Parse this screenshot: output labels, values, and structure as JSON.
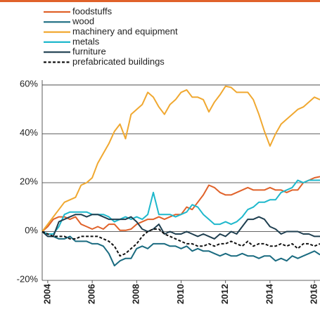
{
  "chart_data": {
    "type": "line",
    "x": [
      2003.75,
      2004,
      2004.25,
      2004.5,
      2004.75,
      2005,
      2005.25,
      2005.5,
      2005.75,
      2006,
      2006.25,
      2006.5,
      2006.75,
      2007,
      2007.25,
      2007.5,
      2007.75,
      2008,
      2008.25,
      2008.5,
      2008.75,
      2009,
      2009.25,
      2009.5,
      2009.75,
      2010,
      2010.25,
      2010.5,
      2010.75,
      2011,
      2011.25,
      2011.5,
      2011.75,
      2012,
      2012.25,
      2012.5,
      2012.75,
      2013,
      2013.25,
      2013.5,
      2013.75,
      2014,
      2014.25,
      2014.5,
      2014.75,
      2015,
      2015.25,
      2015.5,
      2015.75,
      2016,
      2016.25
    ],
    "series": [
      {
        "name": "foodstuffs",
        "color": "#e0622a",
        "values": [
          0,
          2,
          5,
          6,
          6,
          5,
          6,
          3,
          2,
          1,
          2,
          1,
          3,
          3,
          0.5,
          0.5,
          1,
          3,
          4,
          5,
          5,
          6,
          5,
          6,
          7,
          7,
          10,
          9,
          12,
          15,
          19,
          18,
          16,
          15,
          15,
          16,
          17,
          18,
          17,
          17,
          17,
          18,
          17,
          17,
          16,
          17,
          17,
          20,
          21,
          22,
          22.5
        ]
      },
      {
        "name": "wood",
        "color": "#1a6b80",
        "values": [
          0,
          -2,
          -2,
          -3,
          -3,
          -2,
          -4,
          -4,
          -4,
          -5,
          -5,
          -6,
          -9,
          -14,
          -12,
          -11,
          -11,
          -7,
          -6,
          -7,
          -5,
          -5,
          -5,
          -6,
          -6,
          -7,
          -6,
          -8,
          -7,
          -8,
          -8,
          -9,
          -10,
          -9,
          -10,
          -10,
          -9,
          -10,
          -10,
          -11,
          -10,
          -10,
          -12,
          -11,
          -12,
          -10,
          -11,
          -10,
          -9,
          -8,
          -9.5
        ]
      },
      {
        "name": "machinery and equipment",
        "color": "#f0a830",
        "values": [
          0,
          3,
          6,
          9,
          12,
          13,
          14,
          19,
          20,
          22,
          28,
          32,
          36,
          41,
          44,
          38,
          48,
          50,
          52,
          57,
          55,
          51,
          48,
          52,
          54,
          57,
          58,
          55,
          55,
          54,
          49,
          53,
          56,
          59.5,
          59,
          57,
          57,
          57,
          54,
          48,
          41,
          35,
          40,
          44,
          46,
          48,
          50,
          51,
          53,
          55,
          54
        ]
      },
      {
        "name": "metals",
        "color": "#1fb8cc",
        "values": [
          0,
          -1,
          -1,
          2,
          7,
          8,
          8,
          8,
          8,
          7,
          7,
          7,
          6,
          4,
          5,
          6,
          5,
          6,
          5,
          7,
          16,
          7,
          7,
          7,
          6,
          7,
          8,
          11,
          10,
          7,
          5,
          3,
          3,
          4,
          3,
          4,
          6,
          9,
          10,
          12,
          12,
          13,
          13,
          16,
          17,
          18,
          21,
          20,
          21,
          21,
          21
        ]
      },
      {
        "name": "furniture",
        "color": "#1f3f50",
        "values": [
          0,
          -2,
          -2,
          4,
          5,
          6,
          7,
          7,
          6,
          7,
          7,
          6,
          5,
          5,
          5,
          5,
          6,
          4,
          1,
          0,
          1,
          3,
          -1,
          0,
          -1,
          -1,
          0,
          -1,
          -2,
          -1,
          -2,
          -3,
          -1,
          -2,
          0,
          -1,
          2,
          5,
          5,
          6,
          5,
          2,
          1,
          -1,
          0,
          0,
          0,
          -1,
          -1,
          -2,
          -2
        ]
      },
      {
        "name": "prefabricated buildings",
        "color": "#111111",
        "style": "dashed",
        "values": [
          0,
          -1,
          -2,
          -2,
          -2,
          -3,
          -3,
          -2,
          -2,
          -2,
          -2,
          -3,
          -4,
          -6,
          -10,
          -9,
          -7,
          -5,
          -2,
          0,
          1,
          1,
          -1,
          -2,
          -3,
          -4,
          -5,
          -5,
          -6,
          -6,
          -5,
          -6,
          -5,
          -5,
          -4,
          -5,
          -6,
          -4,
          -6,
          -5,
          -5,
          -6,
          -6,
          -5,
          -6,
          -5,
          -7,
          -5,
          -5,
          -6,
          -5
        ]
      }
    ],
    "xlim": [
      2003.75,
      2016.25
    ],
    "xticks": [
      2004,
      2006,
      2008,
      2010,
      2012,
      2014,
      2016
    ],
    "ylim": [
      -20,
      62
    ],
    "yticks": [
      {
        "value": -20,
        "label": "-20%"
      },
      {
        "value": 0,
        "label": "0%"
      },
      {
        "value": 20,
        "label": "20%"
      },
      {
        "value": 40,
        "label": "40%"
      },
      {
        "value": 60,
        "label": "60%"
      }
    ],
    "grid": true
  }
}
